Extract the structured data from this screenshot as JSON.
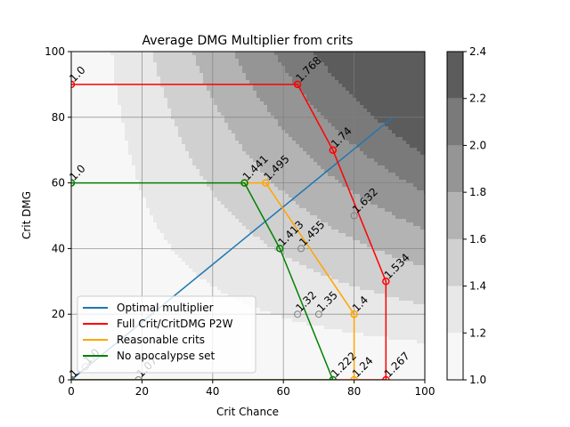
{
  "chart_data": {
    "type": "line",
    "title": "Average DMG Multiplier from crits",
    "xlabel": "Crit Chance",
    "ylabel": "Crit DMG",
    "xlim": [
      0,
      100
    ],
    "ylim": [
      0,
      100
    ],
    "xticks": [
      0,
      20,
      40,
      60,
      80,
      100
    ],
    "yticks": [
      0,
      20,
      40,
      60,
      80,
      100
    ],
    "grid": true,
    "legend_position": "lower-left",
    "background": {
      "type": "contourf",
      "formula": "1 + (crit_chance/100) * (crit_dmg/100)",
      "levels": [
        1.0,
        1.2,
        1.4,
        1.6,
        1.8,
        2.0,
        2.2,
        2.4
      ],
      "colors": [
        "#f7f7f7",
        "#e8e8e8",
        "#d0d0d0",
        "#b3b3b3",
        "#959595",
        "#7a7a7a",
        "#5c5c5c"
      ]
    },
    "colorbar": {
      "ticks": [
        "1.0",
        "1.2",
        "1.4",
        "1.6",
        "1.8",
        "2.0",
        "2.2",
        "2.4"
      ],
      "range": [
        1.0,
        2.4
      ]
    },
    "series": [
      {
        "name": "Optimal multiplier",
        "color": "#1f77b4",
        "markers": false,
        "points": [
          [
            0,
            0
          ],
          [
            91,
            80
          ]
        ]
      },
      {
        "name": "Full Crit/CritDMG P2W",
        "color": "#ff0000",
        "markers": true,
        "points": [
          [
            0,
            90
          ],
          [
            64,
            90
          ],
          [
            74,
            70
          ],
          [
            89,
            30
          ],
          [
            89,
            0
          ],
          [
            0,
            0
          ]
        ],
        "labels": [
          {
            "x": 0,
            "y": 90,
            "text": "1.0"
          },
          {
            "x": 64,
            "y": 90,
            "text": "1.768"
          },
          {
            "x": 74,
            "y": 70,
            "text": "1.74"
          },
          {
            "x": 89,
            "y": 30,
            "text": "1.534"
          },
          {
            "x": 89,
            "y": 0,
            "text": "1.267"
          }
        ]
      },
      {
        "name": "Reasonable crits",
        "color": "#ffa500",
        "markers": true,
        "points": [
          [
            49,
            60
          ],
          [
            55,
            60
          ],
          [
            80,
            20
          ],
          [
            80,
            0
          ]
        ],
        "labels": [
          {
            "x": 55,
            "y": 60,
            "text": "1.495"
          },
          {
            "x": 80,
            "y": 20,
            "text": "1.4"
          },
          {
            "x": 80,
            "y": 0,
            "text": "1.24"
          }
        ]
      },
      {
        "name": "No apocalypse set",
        "color": "#008000",
        "markers": true,
        "points": [
          [
            0,
            60
          ],
          [
            49,
            60
          ],
          [
            59,
            40
          ],
          [
            74,
            0
          ],
          [
            0,
            0
          ]
        ],
        "labels": [
          {
            "x": 0,
            "y": 60,
            "text": "1.0"
          },
          {
            "x": 49,
            "y": 60,
            "text": "1.441"
          },
          {
            "x": 59,
            "y": 40,
            "text": "1.413"
          },
          {
            "x": 74,
            "y": 0,
            "text": "1.222"
          }
        ]
      }
    ],
    "extra_points": {
      "color": "#808080",
      "points": [
        {
          "x": 80,
          "y": 50,
          "text": "1.632"
        },
        {
          "x": 65,
          "y": 40,
          "text": "1.455"
        },
        {
          "x": 64,
          "y": 20,
          "text": "1.32"
        },
        {
          "x": 70,
          "y": 20,
          "text": "1.35"
        },
        {
          "x": 4,
          "y": 4,
          "text": "1.0"
        },
        {
          "x": 19,
          "y": 0,
          "text": "1.07"
        },
        {
          "x": 0,
          "y": 0,
          "text": "1."
        }
      ]
    }
  }
}
